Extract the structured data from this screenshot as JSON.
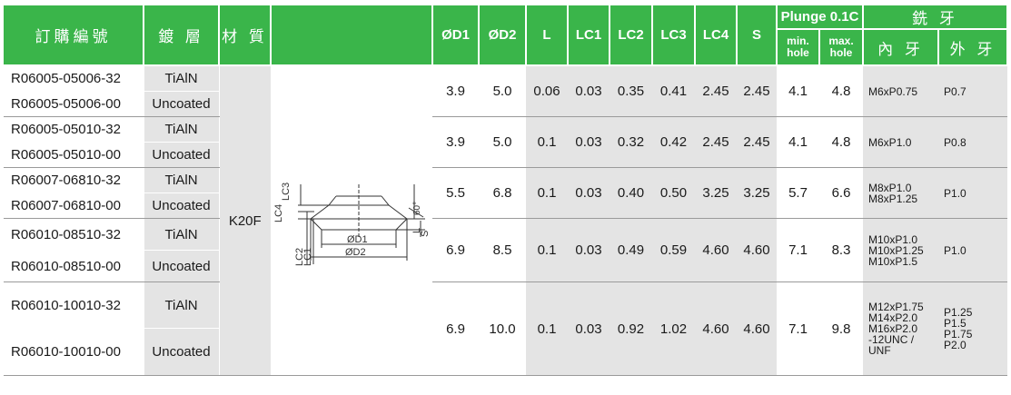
{
  "headers": {
    "order_no": "訂購編號",
    "coating": "鍍 層",
    "material": "材 質",
    "d1": "ØD1",
    "d2": "ØD2",
    "l": "L",
    "lc1": "LC1",
    "lc2": "LC2",
    "lc3": "LC3",
    "lc4": "LC4",
    "s": "S",
    "plunge": "Plunge 0.1C",
    "min_hole": "min. hole",
    "max_hole": "max. hole",
    "thread_mill": "銑 牙",
    "internal": "內 牙",
    "external": "外 牙"
  },
  "material_value": "K20F",
  "diagram": {
    "labels": {
      "d1": "ØD1",
      "d2": "ØD2",
      "lc1": "LC1",
      "lc2": "LC2",
      "lc3": "LC3",
      "lc4": "LC4",
      "l": "L",
      "s": "S",
      "angle": "60°"
    }
  },
  "groups": [
    {
      "codes": [
        "R06005-05006-32",
        "R06005-05006-00"
      ],
      "coatings": [
        "TiAlN",
        "Uncoated"
      ],
      "d1": "3.9",
      "d2": "5.0",
      "l": "0.06",
      "lc1": "0.03",
      "lc2": "0.35",
      "lc3": "0.41",
      "lc4": "2.45",
      "s": "2.45",
      "min": "4.1",
      "max": "4.8",
      "internal": [
        "M6xP0.75"
      ],
      "external": [
        "P0.7"
      ]
    },
    {
      "codes": [
        "R06005-05010-32",
        "R06005-05010-00"
      ],
      "coatings": [
        "TiAlN",
        "Uncoated"
      ],
      "d1": "3.9",
      "d2": "5.0",
      "l": "0.1",
      "lc1": "0.03",
      "lc2": "0.32",
      "lc3": "0.42",
      "lc4": "2.45",
      "s": "2.45",
      "min": "4.1",
      "max": "4.8",
      "internal": [
        "M6xP1.0"
      ],
      "external": [
        "P0.8"
      ]
    },
    {
      "codes": [
        "R06007-06810-32",
        "R06007-06810-00"
      ],
      "coatings": [
        "TiAlN",
        "Uncoated"
      ],
      "d1": "5.5",
      "d2": "6.8",
      "l": "0.1",
      "lc1": "0.03",
      "lc2": "0.40",
      "lc3": "0.50",
      "lc4": "3.25",
      "s": "3.25",
      "min": "5.7",
      "max": "6.6",
      "internal": [
        "M8xP1.0",
        "M8xP1.25"
      ],
      "external": [
        "P1.0"
      ]
    },
    {
      "codes": [
        "R06010-08510-32",
        "R06010-08510-00"
      ],
      "coatings": [
        "TiAlN",
        "Uncoated"
      ],
      "d1": "6.9",
      "d2": "8.5",
      "l": "0.1",
      "lc1": "0.03",
      "lc2": "0.49",
      "lc3": "0.59",
      "lc4": "4.60",
      "s": "4.60",
      "min": "7.1",
      "max": "8.3",
      "internal": [
        "M10xP1.0",
        "M10xP1.25",
        "M10xP1.5"
      ],
      "external": [
        "P1.0"
      ]
    },
    {
      "codes": [
        "R06010-10010-32",
        "R06010-10010-00"
      ],
      "coatings": [
        "TiAlN",
        "Uncoated"
      ],
      "d1": "6.9",
      "d2": "10.0",
      "l": "0.1",
      "lc1": "0.03",
      "lc2": "0.92",
      "lc3": "1.02",
      "lc4": "4.60",
      "s": "4.60",
      "min": "7.1",
      "max": "9.8",
      "internal": [
        "M12xP1.75",
        "M14xP2.0",
        "M16xP2.0",
        "-12UNC /",
        "UNF"
      ],
      "external": [
        "P1.25",
        "P1.5",
        "P1.75",
        "P2.0"
      ]
    }
  ],
  "colors": {
    "header_bg": "#3ab54a",
    "header_text": "#ffffff",
    "shade": "#e4e4e4"
  }
}
